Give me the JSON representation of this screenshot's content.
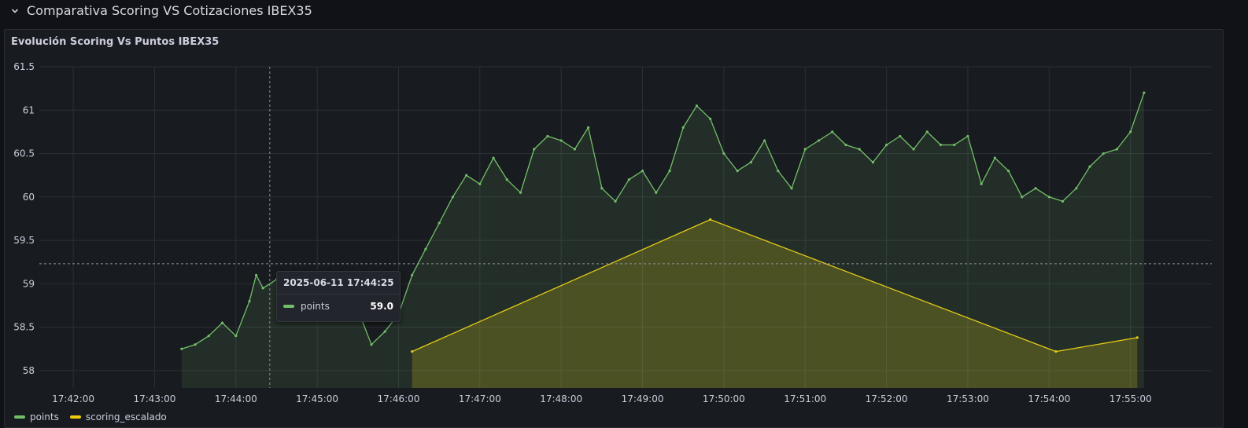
{
  "row": {
    "title": "Comparativa Scoring VS Cotizaciones IBEX35"
  },
  "panel": {
    "title": "Evolución Scoring Vs Puntos IBEX35"
  },
  "tooltip": {
    "time": "2025-06-11 17:44:25",
    "series": "points",
    "value": "59.0"
  },
  "colors": {
    "points": "#73bf69",
    "scoring_escalado": "#f2cc0c",
    "grid": "#2c2f35",
    "background": "#181b1f"
  },
  "chart_data": {
    "type": "line",
    "ylim": [
      57.8,
      61.5
    ],
    "yticks": [
      {
        "v": 58,
        "label": "58"
      },
      {
        "v": 58.5,
        "label": "58.5"
      },
      {
        "v": 59,
        "label": "59"
      },
      {
        "v": 59.5,
        "label": "59.5"
      },
      {
        "v": 60,
        "label": "60"
      },
      {
        "v": 60.5,
        "label": "60.5"
      },
      {
        "v": 61,
        "label": "61"
      },
      {
        "v": 61.5,
        "label": "61.5"
      }
    ],
    "xlim": [
      "17:41:35",
      "17:56:00"
    ],
    "xticks": [
      "17:42:00",
      "17:43:00",
      "17:44:00",
      "17:45:00",
      "17:46:00",
      "17:47:00",
      "17:48:00",
      "17:49:00",
      "17:50:00",
      "17:51:00",
      "17:52:00",
      "17:53:00",
      "17:54:00",
      "17:55:00"
    ],
    "cursor_x": "17:44:25",
    "cursor_y": 59.23,
    "series": [
      {
        "name": "points",
        "x": [
          "17:43:20",
          "17:43:30",
          "17:43:40",
          "17:43:50",
          "17:44:00",
          "17:44:10",
          "17:44:15",
          "17:44:20",
          "17:44:30",
          "17:44:40",
          "17:44:50",
          "17:45:00",
          "17:45:10",
          "17:45:20",
          "17:45:30",
          "17:45:40",
          "17:45:50",
          "17:46:00",
          "17:46:10",
          "17:46:20",
          "17:46:30",
          "17:46:40",
          "17:46:50",
          "17:47:00",
          "17:47:10",
          "17:47:20",
          "17:47:30",
          "17:47:40",
          "17:47:50",
          "17:48:00",
          "17:48:10",
          "17:48:20",
          "17:48:30",
          "17:48:40",
          "17:48:50",
          "17:49:00",
          "17:49:10",
          "17:49:20",
          "17:49:30",
          "17:49:40",
          "17:49:50",
          "17:50:00",
          "17:50:10",
          "17:50:20",
          "17:50:30",
          "17:50:40",
          "17:50:50",
          "17:51:00",
          "17:51:10",
          "17:51:20",
          "17:51:30",
          "17:51:40",
          "17:51:50",
          "17:52:00",
          "17:52:10",
          "17:52:20",
          "17:52:30",
          "17:52:40",
          "17:52:50",
          "17:53:00",
          "17:53:10",
          "17:53:20",
          "17:53:30",
          "17:53:40",
          "17:53:50",
          "17:54:00",
          "17:54:10",
          "17:54:20",
          "17:54:30",
          "17:54:40",
          "17:54:50",
          "17:55:00",
          "17:55:10"
        ],
        "values": [
          58.25,
          58.3,
          58.4,
          58.55,
          58.4,
          58.8,
          59.1,
          58.95,
          59.05,
          58.7,
          58.9,
          58.6,
          58.75,
          58.6,
          58.7,
          58.3,
          58.45,
          58.65,
          59.1,
          59.4,
          59.7,
          60.0,
          60.25,
          60.15,
          60.45,
          60.2,
          60.05,
          60.55,
          60.7,
          60.65,
          60.55,
          60.8,
          60.1,
          59.95,
          60.2,
          60.3,
          60.05,
          60.3,
          60.8,
          61.05,
          60.9,
          60.5,
          60.3,
          60.4,
          60.65,
          60.3,
          60.1,
          60.55,
          60.65,
          60.75,
          60.6,
          60.55,
          60.4,
          60.6,
          60.7,
          60.55,
          60.75,
          60.6,
          60.6,
          60.7,
          60.15,
          60.45,
          60.3,
          60.0,
          60.1,
          60.0,
          59.95,
          60.1,
          60.35,
          60.5,
          60.55,
          60.75,
          61.2
        ]
      },
      {
        "name": "scoring_escalado",
        "x": [
          "17:46:10",
          "17:49:50",
          "17:54:05",
          "17:55:05"
        ],
        "values": [
          58.22,
          59.74,
          58.22,
          58.38
        ]
      }
    ]
  }
}
